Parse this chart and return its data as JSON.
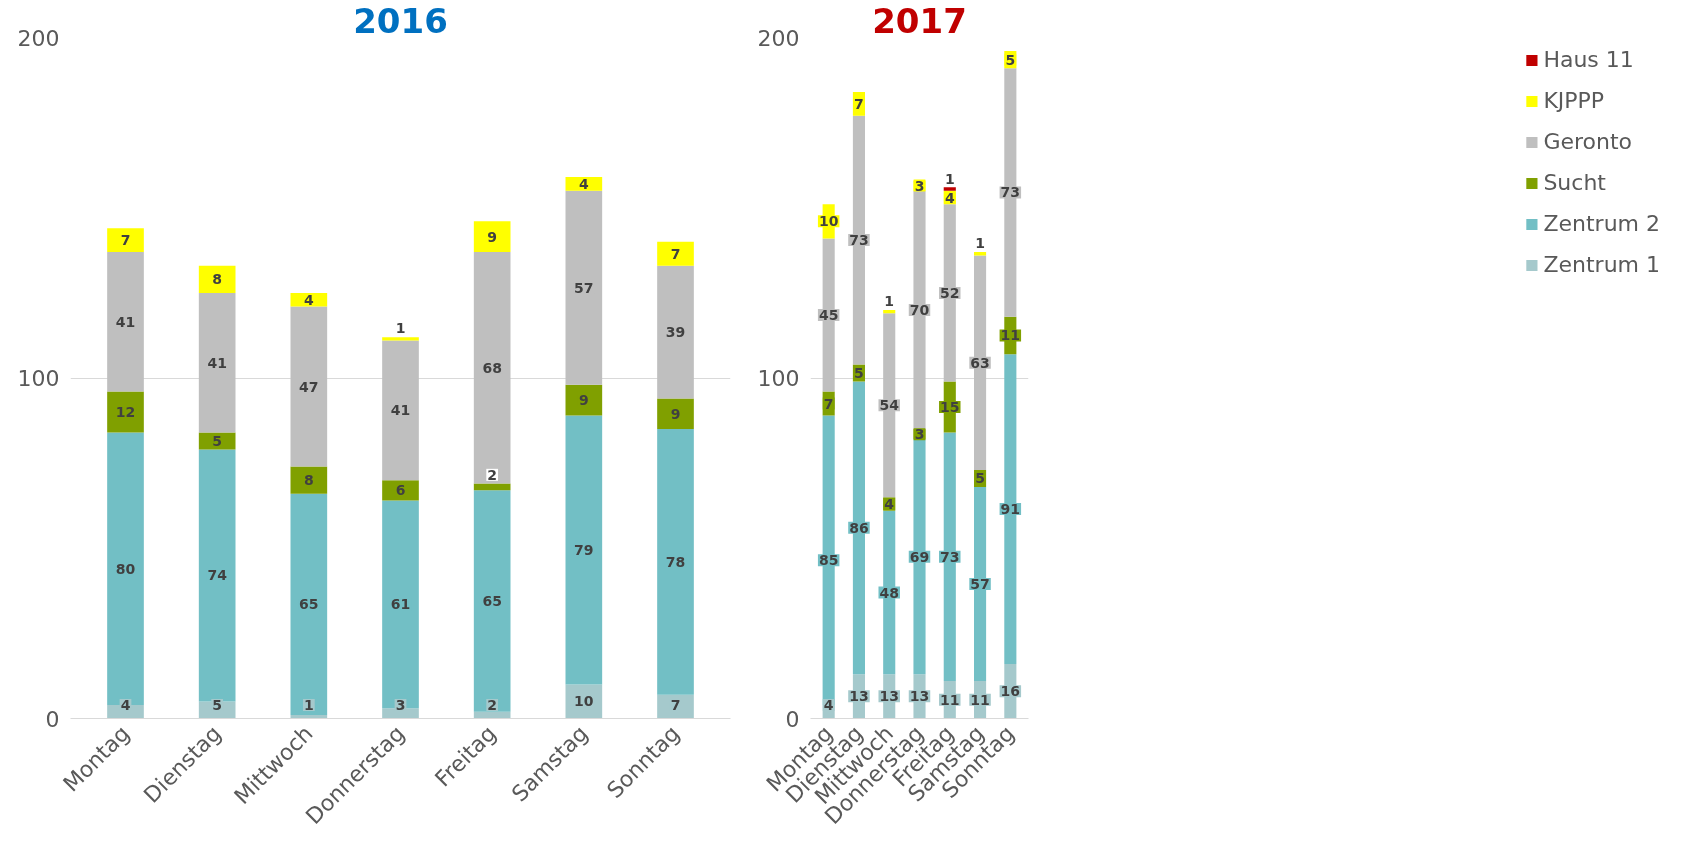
{
  "chart_data": [
    {
      "type": "bar",
      "title": "2016",
      "stacked": true,
      "categories": [
        "Montag",
        "Dienstag",
        "Mittwoch",
        "Donnerstag",
        "Freitag",
        "Samstag",
        "Sonntag"
      ],
      "ylim": [
        0,
        200
      ],
      "yticks": [
        0,
        100,
        200
      ],
      "grid": "y",
      "data_labels": true,
      "legend": false,
      "series": [
        {
          "color": "#a5c9cc",
          "values": [
            4,
            5,
            1,
            3,
            2,
            10,
            7
          ]
        },
        {
          "color": "#72bfc5",
          "values": [
            80,
            74,
            65,
            61,
            65,
            79,
            78
          ]
        },
        {
          "color": "#80a000",
          "values": [
            12,
            5,
            8,
            6,
            2,
            9,
            9
          ]
        },
        {
          "color": "#bfbfbf",
          "values": [
            41,
            41,
            47,
            41,
            68,
            57,
            39
          ]
        },
        {
          "color": "#ffff00",
          "values": [
            7,
            8,
            4,
            1,
            9,
            4,
            7
          ]
        }
      ]
    },
    {
      "type": "bar",
      "title": "2017",
      "stacked": true,
      "categories": [
        "Montag",
        "Dienstag",
        "Mittwoch",
        "Donnerstag",
        "Freitag",
        "Samstag",
        "Sonntag"
      ],
      "ylim": [
        0,
        200
      ],
      "yticks": [
        0,
        100,
        200
      ],
      "grid": "y",
      "data_labels": true,
      "legend": "right",
      "series": [
        {
          "name": "Zentrum 1",
          "color": "#a5c9cc",
          "values": [
            4,
            13,
            13,
            13,
            11,
            11,
            16
          ]
        },
        {
          "name": "Zentrum 2",
          "color": "#72bfc5",
          "values": [
            85,
            86,
            48,
            69,
            73,
            57,
            91
          ]
        },
        {
          "name": "Sucht",
          "color": "#80a000",
          "values": [
            7,
            5,
            4,
            3,
            15,
            5,
            11
          ]
        },
        {
          "name": "Geronto",
          "color": "#bfbfbf",
          "values": [
            45,
            73,
            54,
            70,
            52,
            63,
            73
          ]
        },
        {
          "name": "KJPPP",
          "color": "#ffff00",
          "values": [
            10,
            7,
            1,
            3,
            4,
            1,
            5
          ]
        },
        {
          "name": "Haus 11",
          "color": "#c00000",
          "values": [
            null,
            null,
            null,
            null,
            1,
            null,
            null
          ]
        }
      ]
    }
  ]
}
